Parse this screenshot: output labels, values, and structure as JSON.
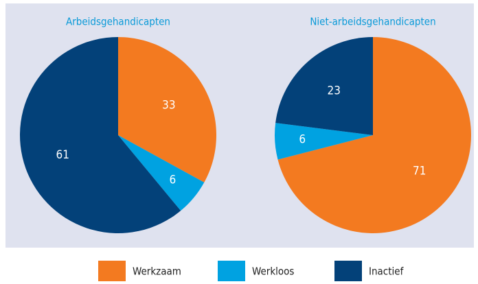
{
  "chart_data": [
    {
      "type": "pie",
      "title": "Arbeidsgehandicapten",
      "categories": [
        "Werkzaam",
        "Werkloos",
        "Inactief"
      ],
      "values": [
        33,
        6,
        61
      ],
      "colors": [
        "#f37a20",
        "#00a2e1",
        "#034179"
      ]
    },
    {
      "type": "pie",
      "title": "Niet-arbeidsgehandicapten",
      "categories": [
        "Werkzaam",
        "Werkloos",
        "Inactief"
      ],
      "values": [
        71,
        6,
        23
      ],
      "colors": [
        "#f37a20",
        "#00a2e1",
        "#034179"
      ]
    }
  ]
}
